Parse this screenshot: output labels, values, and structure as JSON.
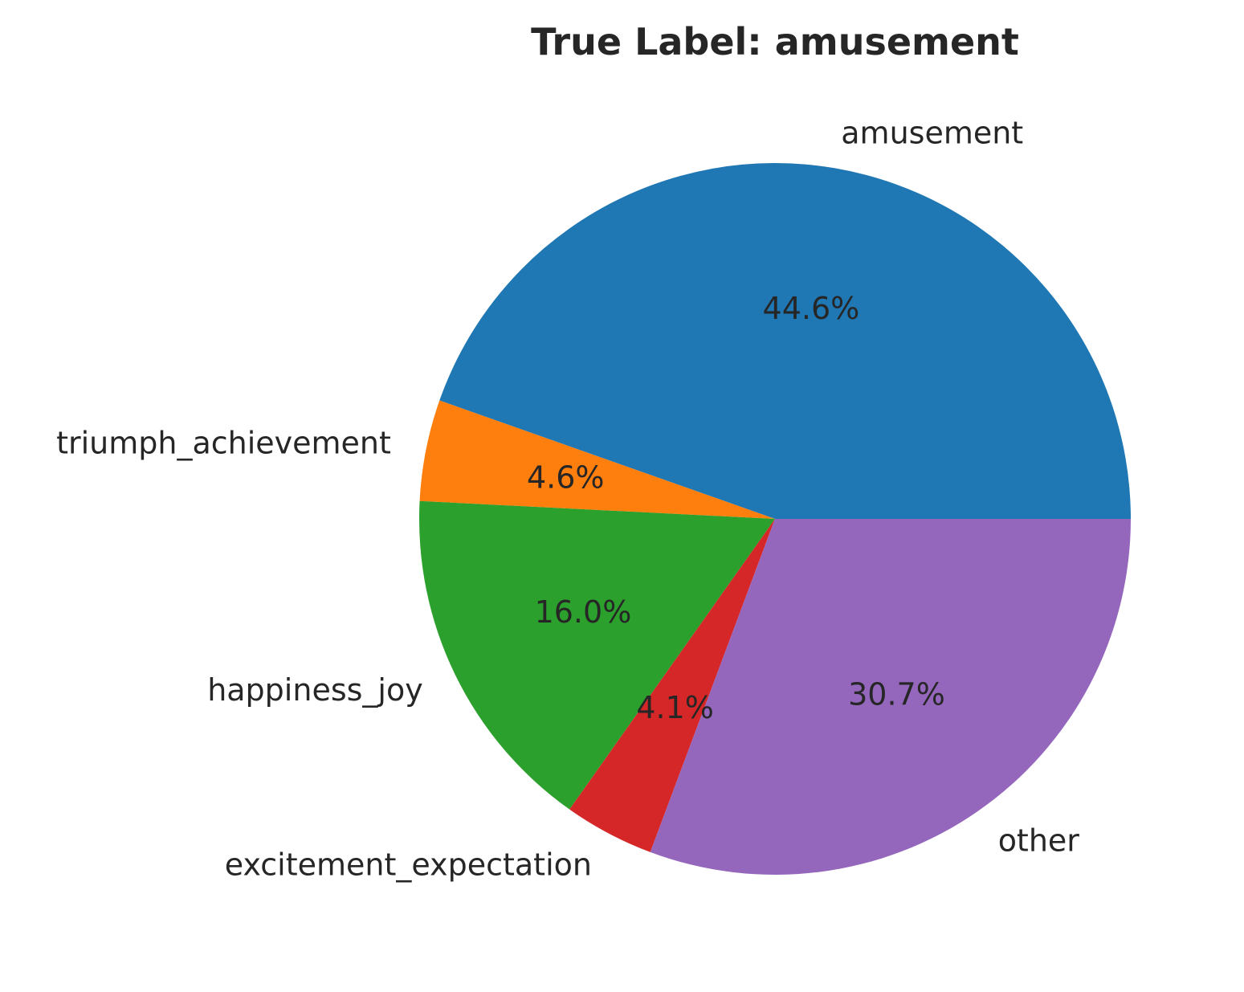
{
  "chart_data": {
    "type": "pie",
    "title": "True Label: amusement",
    "categories": [
      "amusement",
      "triumph_achievement",
      "happiness_joy",
      "excitement_expectation",
      "other"
    ],
    "values": [
      44.6,
      4.6,
      16.0,
      4.1,
      30.7
    ],
    "value_labels": [
      "44.6%",
      "4.6%",
      "16.0%",
      "4.1%",
      "30.7%"
    ],
    "colors": [
      "#1f77b4",
      "#ff7f0e",
      "#2ca02c",
      "#d62728",
      "#9467bd"
    ],
    "start_angle_deg": 0,
    "direction": "counterclockwise",
    "legend": "none"
  }
}
